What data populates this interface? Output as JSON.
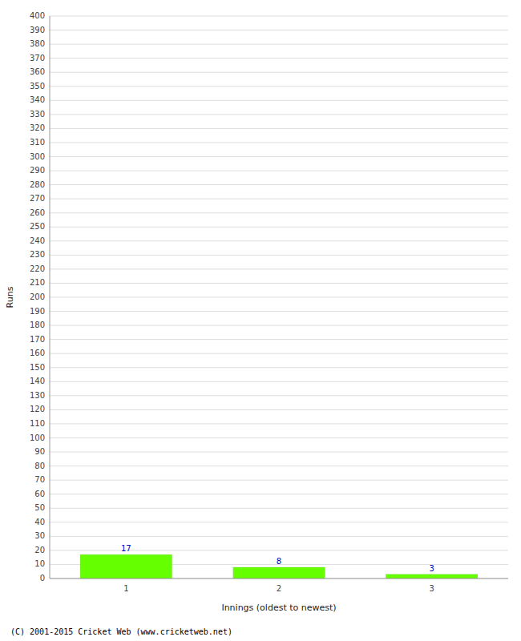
{
  "chart_data": {
    "type": "bar",
    "categories": [
      "1",
      "2",
      "3"
    ],
    "values": [
      17,
      8,
      3
    ],
    "color": "#66ff00",
    "data_labels": true,
    "xlabel": "Innings (oldest to newest)",
    "ylabel": "Runs",
    "ylim": [
      0,
      400
    ],
    "yticks": [
      0,
      10,
      20,
      30,
      40,
      50,
      60,
      70,
      80,
      90,
      100,
      110,
      120,
      130,
      140,
      150,
      160,
      170,
      180,
      190,
      200,
      210,
      220,
      230,
      240,
      250,
      260,
      270,
      280,
      290,
      300,
      310,
      320,
      330,
      340,
      350,
      360,
      370,
      380,
      390,
      400
    ],
    "grid": true,
    "annotations": [
      "(C) 2001-2015 Cricket Web (www.cricketweb.net)"
    ]
  }
}
